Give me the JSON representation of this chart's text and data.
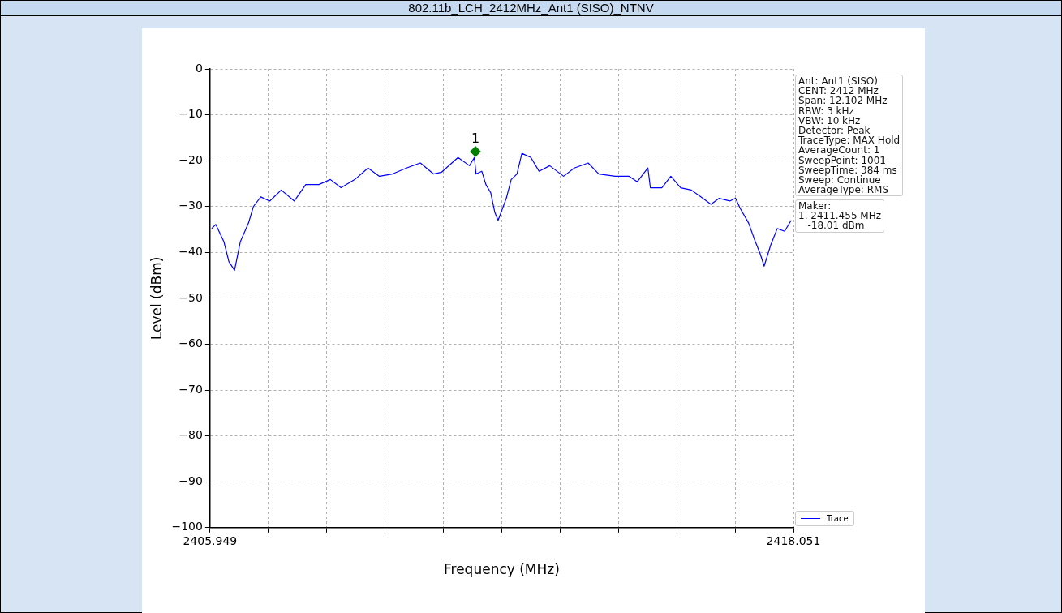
{
  "chart_data": {
    "type": "line",
    "title": "802.11b_LCH_2412MHz_Ant1 (SISO)_NTNV",
    "xlabel": "Frequency (MHz)",
    "ylabel": "Level (dBm)",
    "xlim": [
      2405.949,
      2418.051
    ],
    "xticks": [
      2405.949,
      {
        "value": 2407.159,
        "label": null
      },
      {
        "value": 2408.369,
        "label": null
      },
      {
        "value": 2409.58,
        "label": null
      },
      {
        "value": 2410.79,
        "label": null
      },
      {
        "value": 2412.0,
        "label": null
      },
      {
        "value": 2413.21,
        "label": null
      },
      {
        "value": 2414.42,
        "label": null
      },
      {
        "value": 2415.631,
        "label": null
      },
      {
        "value": 2416.841,
        "label": null
      },
      2418.051
    ],
    "ylim": [
      -100,
      0
    ],
    "yticks": [
      -100,
      -90,
      -80,
      -70,
      -60,
      -50,
      -40,
      -30,
      -20,
      -10,
      0
    ],
    "grid": true,
    "legend": "bottom right",
    "series": [
      {
        "name": "Trace",
        "color": "#0000ff",
        "marker": "none",
        "x": [
          2405.983,
          2406.068,
          2406.238,
          2406.34,
          2406.458,
          2406.577,
          2406.747,
          2406.849,
          2407.002,
          2407.188,
          2407.426,
          2407.698,
          2407.935,
          2408.207,
          2408.445,
          2408.666,
          2408.954,
          2409.226,
          2409.463,
          2409.735,
          2410.024,
          2410.312,
          2410.584,
          2410.754,
          2411.093,
          2411.331,
          2411.433,
          2411.467,
          2411.586,
          2411.671,
          2411.772,
          2411.857,
          2411.925,
          2412.095,
          2412.197,
          2412.316,
          2412.418,
          2412.604,
          2412.774,
          2412.995,
          2413.283,
          2413.504,
          2413.793,
          2414.014,
          2414.353,
          2414.642,
          2414.812,
          2415.032,
          2415.083,
          2415.321,
          2415.508,
          2415.712,
          2415.932,
          2416.17,
          2416.34,
          2416.51,
          2416.73,
          2416.849,
          2416.951,
          2417.121,
          2417.24,
          2417.358,
          2417.443,
          2417.579,
          2417.715,
          2417.868,
          2418.003
        ],
        "values": [
          -34.8,
          -33.9,
          -37.7,
          -42,
          -43.9,
          -37.7,
          -33.6,
          -30,
          -27.9,
          -28.8,
          -26.4,
          -28.8,
          -25.2,
          -25.2,
          -24.1,
          -25.9,
          -24.1,
          -21.6,
          -23.4,
          -22.9,
          -21.6,
          -20.5,
          -22.9,
          -22.5,
          -19.3,
          -21.1,
          -19.3,
          -22.9,
          -22.3,
          -25.2,
          -27,
          -31.3,
          -33,
          -28.2,
          -24.1,
          -22.9,
          -18.4,
          -19.3,
          -22.3,
          -21.1,
          -23.4,
          -21.6,
          -20.5,
          -22.9,
          -23.4,
          -23.4,
          -24.6,
          -21.6,
          -25.9,
          -25.9,
          -23.4,
          -25.9,
          -26.4,
          -28.2,
          -29.5,
          -28.2,
          -28.8,
          -28.2,
          -30.5,
          -33.6,
          -37.1,
          -40.2,
          -43,
          -38.4,
          -34.8,
          -35.4,
          -33
        ]
      },
      {
        "type": "scatter",
        "color": "#008000",
        "marker": "diamond",
        "x": [
          2411.455
        ],
        "values": [
          -18.01
        ]
      }
    ],
    "annotations": [
      {
        "text": "1",
        "x": 2411.455,
        "y": -18.01
      },
      "Ant: Ant1 (SISO)\nCENT: 2412 MHz\nSpan: 12.102 MHz\nRBW: 3 kHz\nVBW: 10 kHz\nDetector: Peak\nTraceType: MAX Hold\nAverageCount: 1\nSweepPoint: 1001\nSweepTime: 384 ms\nSweep: Continue\nAverageType: RMS",
      "Maker:\n1. 2411.455 MHz\n   -18.01 dBm"
    ]
  }
}
